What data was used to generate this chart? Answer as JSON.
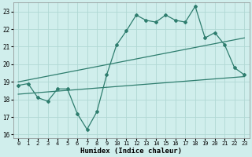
{
  "title": "",
  "xlabel": "Humidex (Indice chaleur)",
  "ylabel": "",
  "bg_color": "#d0eeec",
  "line_color": "#2e7d6e",
  "grid_color": "#b0d8d4",
  "xlim": [
    -0.5,
    23.5
  ],
  "ylim": [
    15.8,
    23.5
  ],
  "xticks": [
    0,
    1,
    2,
    3,
    4,
    5,
    6,
    7,
    8,
    9,
    10,
    11,
    12,
    13,
    14,
    15,
    16,
    17,
    18,
    19,
    20,
    21,
    22,
    23
  ],
  "yticks": [
    16,
    17,
    18,
    19,
    20,
    21,
    22,
    23
  ],
  "main_x": [
    0,
    1,
    2,
    3,
    4,
    5,
    6,
    7,
    8,
    9,
    10,
    11,
    12,
    13,
    14,
    15,
    16,
    17,
    18,
    19,
    20,
    21,
    22,
    23
  ],
  "main_y": [
    18.8,
    18.9,
    18.1,
    17.9,
    18.6,
    18.6,
    17.2,
    16.3,
    17.3,
    19.4,
    21.1,
    21.9,
    22.8,
    22.5,
    22.4,
    22.8,
    22.5,
    22.4,
    23.3,
    21.5,
    21.8,
    21.1,
    19.8,
    19.4
  ],
  "trend1_x": [
    0,
    23
  ],
  "trend1_y": [
    19.0,
    21.5
  ],
  "trend2_x": [
    0,
    23
  ],
  "trend2_y": [
    18.3,
    19.3
  ]
}
